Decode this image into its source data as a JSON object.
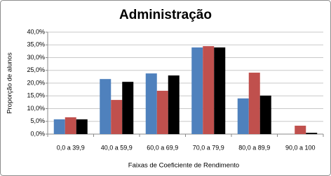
{
  "chart_data": {
    "type": "bar",
    "title": "Administração",
    "y_label": "Proporção de alunos",
    "x_label": "Faixas de Coeficiente de Rendimento",
    "categories": [
      "0,0 a 39,9",
      "40,0 a 59,9",
      "60,0 a 69,9",
      "70,0 a 79,9",
      "80,0 a 89,9",
      "90,0 a 100"
    ],
    "series": [
      {
        "color": "#4f81bd",
        "values": [
          5.8,
          21.6,
          23.8,
          34.0,
          14.0,
          0
        ]
      },
      {
        "color": "#c0504d",
        "values": [
          6.6,
          13.4,
          17.0,
          34.5,
          24.1,
          3.3
        ]
      },
      {
        "color": "#000000",
        "values": [
          5.8,
          20.5,
          23.0,
          34.0,
          15.1,
          0.5
        ]
      }
    ],
    "ylim": [
      0,
      40
    ],
    "yticks": [
      {
        "value": 0,
        "label": "0,0%"
      },
      {
        "value": 5,
        "label": "5,0%"
      },
      {
        "value": 10,
        "label": "10,0%"
      },
      {
        "value": 15,
        "label": "15,0%"
      },
      {
        "value": 20,
        "label": "20,0%"
      },
      {
        "value": 25,
        "label": "25,0%"
      },
      {
        "value": 30,
        "label": "30,0%"
      },
      {
        "value": 35,
        "label": "35,0%"
      },
      {
        "value": 40,
        "label": "40,0%"
      }
    ],
    "grid": true
  }
}
